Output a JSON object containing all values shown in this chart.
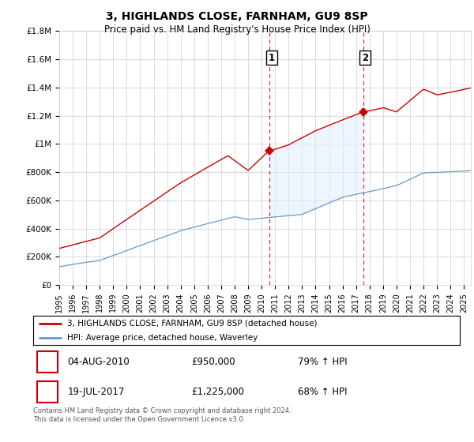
{
  "title": "3, HIGHLANDS CLOSE, FARNHAM, GU9 8SP",
  "subtitle": "Price paid vs. HM Land Registry's House Price Index (HPI)",
  "ylim": [
    0,
    1800000
  ],
  "yticks": [
    0,
    200000,
    400000,
    600000,
    800000,
    1000000,
    1200000,
    1400000,
    1600000,
    1800000
  ],
  "ytick_labels": [
    "£0",
    "£200K",
    "£400K",
    "£600K",
    "£800K",
    "£1M",
    "£1.2M",
    "£1.4M",
    "£1.6M",
    "£1.8M"
  ],
  "legend_line1": "3, HIGHLANDS CLOSE, FARNHAM, GU9 8SP (detached house)",
  "legend_line2": "HPI: Average price, detached house, Waverley",
  "sale1_date": 2010.58,
  "sale1_price": 950000,
  "sale1_label": "1",
  "sale2_date": 2017.54,
  "sale2_price": 1225000,
  "sale2_label": "2",
  "table_row1_date": "04-AUG-2010",
  "table_row1_price": "£950,000",
  "table_row1_hpi": "79% ↑ HPI",
  "table_row2_date": "19-JUL-2017",
  "table_row2_price": "£1,225,000",
  "table_row2_hpi": "68% ↑ HPI",
  "footer": "Contains HM Land Registry data © Crown copyright and database right 2024.\nThis data is licensed under the Open Government Licence v3.0.",
  "line_color_red": "#cc0000",
  "line_color_blue": "#6699cc",
  "shade_color": "#ddeeff",
  "grid_color": "#cccccc",
  "background_color": "#ffffff",
  "xlim_start": 1995,
  "xlim_end": 2025.5
}
